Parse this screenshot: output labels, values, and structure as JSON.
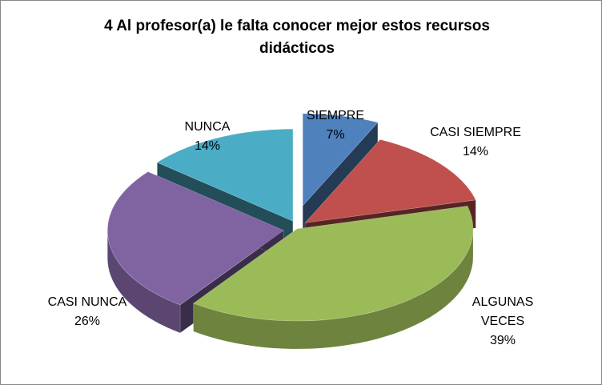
{
  "chart_data": {
    "type": "pie",
    "title_lines": [
      "4 Al profesor(a)  le falta conocer mejor estos recursos",
      "didácticos"
    ],
    "style": "3d-exploded",
    "legend": "none",
    "slices": [
      {
        "label_lines": [
          "SIEMPRE"
        ],
        "percent_label": "7%",
        "value": 7,
        "color": "#4F81BD"
      },
      {
        "label_lines": [
          "CASI SIEMPRE"
        ],
        "percent_label": "14%",
        "value": 14,
        "color": "#C0504D"
      },
      {
        "label_lines": [
          "ALGUNAS",
          "VECES"
        ],
        "percent_label": "39%",
        "value": 39,
        "color": "#9BBB59"
      },
      {
        "label_lines": [
          "CASI NUNCA"
        ],
        "percent_label": "26%",
        "value": 26,
        "color": "#8064A2"
      },
      {
        "label_lines": [
          "NUNCA"
        ],
        "percent_label": "14%",
        "value": 14,
        "color": "#4BACC6"
      }
    ]
  }
}
